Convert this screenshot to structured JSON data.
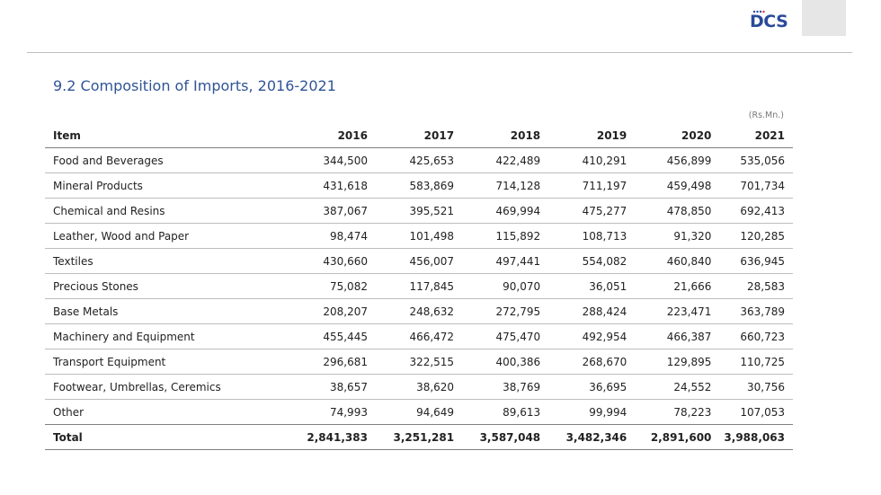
{
  "logo": {
    "text": "DCS",
    "icon": "dcs-logo-icon",
    "color": "#2b4a9a"
  },
  "title": "9.2 Composition of  Imports, 2016-2021",
  "unit": "(Rs.Mn.)",
  "table": {
    "headers": [
      "Item",
      "2016",
      "2017",
      "2018",
      "2019",
      "2020",
      "2021"
    ],
    "rows": [
      [
        "Food and Beverages",
        "344,500",
        "425,653",
        "422,489",
        "410,291",
        "456,899",
        "535,056"
      ],
      [
        "Mineral Products",
        "431,618",
        "583,869",
        "714,128",
        "711,197",
        "459,498",
        "701,734"
      ],
      [
        "Chemical and Resins",
        "387,067",
        "395,521",
        "469,994",
        "475,277",
        "478,850",
        "692,413"
      ],
      [
        "Leather, Wood and Paper",
        "98,474",
        "101,498",
        "115,892",
        "108,713",
        "91,320",
        "120,285"
      ],
      [
        "Textiles",
        "430,660",
        "456,007",
        "497,441",
        "554,082",
        "460,840",
        "636,945"
      ],
      [
        "Precious Stones",
        "75,082",
        "117,845",
        "90,070",
        "36,051",
        "21,666",
        "28,583"
      ],
      [
        "Base Metals",
        "208,207",
        "248,632",
        "272,795",
        "288,424",
        "223,471",
        "363,789"
      ],
      [
        "Machinery and Equipment",
        "455,445",
        "466,472",
        "475,470",
        "492,954",
        "466,387",
        "660,723"
      ],
      [
        "Transport Equipment",
        "296,681",
        "322,515",
        "400,386",
        "268,670",
        "129,895",
        "110,725"
      ],
      [
        "Footwear, Umbrellas, Ceremics",
        "38,657",
        "38,620",
        "38,769",
        "36,695",
        "24,552",
        "30,756"
      ],
      [
        "Other",
        "74,993",
        "94,649",
        "89,613",
        "99,994",
        "78,223",
        "107,053"
      ]
    ],
    "total": [
      "Total",
      "2,841,383",
      "3,251,281",
      "3,587,048",
      "3,482,346",
      "2,891,600",
      "3,988,063"
    ]
  }
}
